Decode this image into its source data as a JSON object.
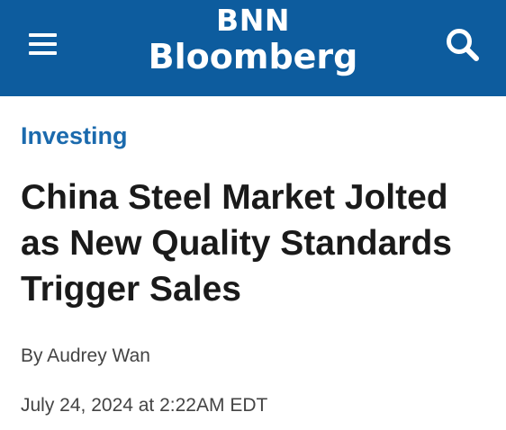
{
  "header": {
    "menu_icon": "hamburger-menu-icon",
    "logo_line1": "BNN",
    "logo_line2": "Bloomberg",
    "search_icon": "search-icon",
    "background_color": "#0d5c9e"
  },
  "article": {
    "section": "Investing",
    "headline": "China Steel Market Jolted as New Quality Standards Trigger Sales",
    "byline": "By Audrey Wan",
    "date": "July 24, 2024 at 2:22AM EDT"
  },
  "colors": {
    "accent": "#1b6aad",
    "headline": "#1a1a1a",
    "meta_text": "#444444"
  }
}
